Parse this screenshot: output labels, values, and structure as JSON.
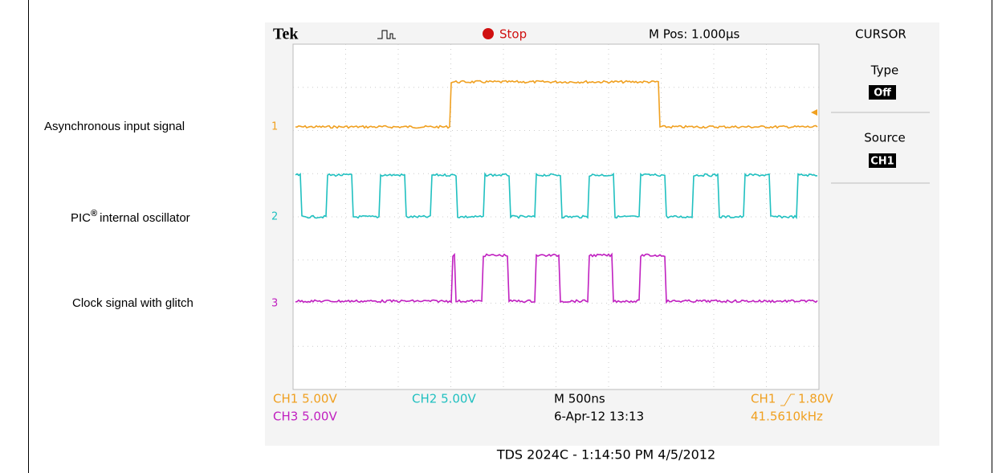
{
  "labels": [
    "Asynchronous input signal",
    "PIC",
    "®",
    "internal oscillator",
    "Clock signal with glitch"
  ],
  "scope": {
    "brand": "Tek",
    "status": "Stop",
    "position": "M Pos: 1.000µs",
    "menu_title": "CURSOR",
    "menu": [
      {
        "label": "Type",
        "value": "Off"
      },
      {
        "label": "Source",
        "value": "CH1"
      }
    ],
    "channel_markers": [
      "1",
      "2",
      "3"
    ],
    "readouts": {
      "ch1": "CH1  5.00V",
      "ch2": "CH2  5.00V",
      "ch3": "CH3  5.00V",
      "timebase": "M 500ns",
      "date": "6-Apr-12 13:13",
      "trigger_source": "CH1",
      "trigger_level": "1.80V",
      "frequency": "41.5610kHz"
    }
  },
  "footer": "TDS 2024C - 1:14:50 PM   4/5/2012"
}
